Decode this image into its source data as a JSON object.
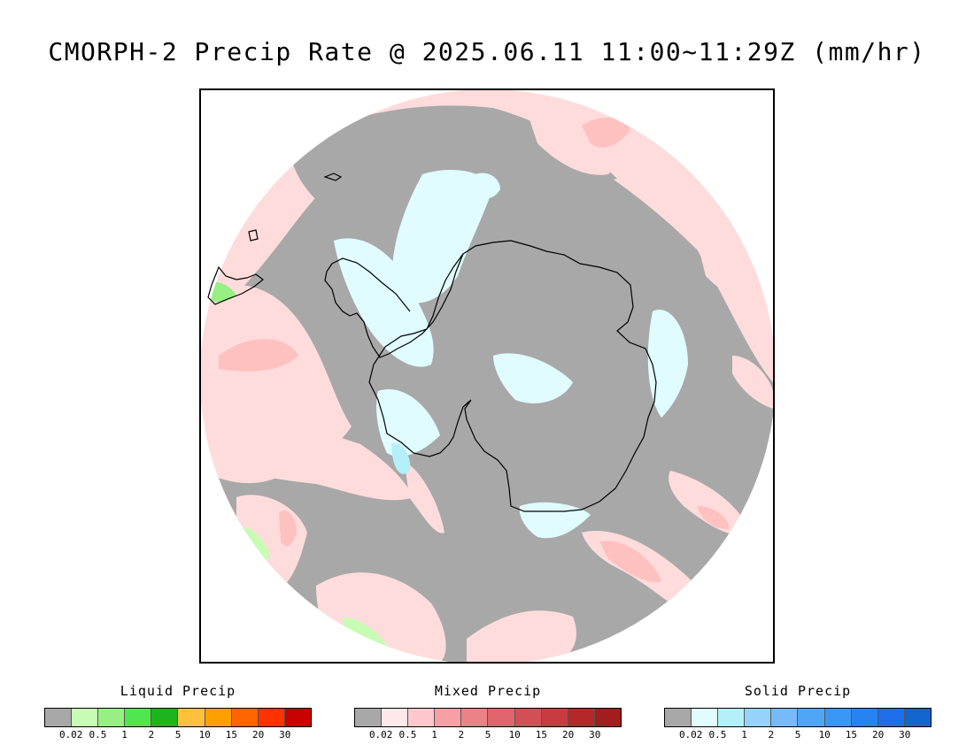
{
  "title": "CMORPH-2 Precip Rate @ 2025.06.11 11:00~11:29Z (mm/hr)",
  "map": {
    "projection": "south-polar-stereographic",
    "region": "Antarctica",
    "colors": {
      "background_gray": "#a8a8a8",
      "light_pink": "#ffdcdc",
      "pink": "#ffc0c0",
      "mid_pink": "#f0a0a0",
      "red_core": "#e07a80",
      "pale_cyan": "#e0fcff",
      "cyan": "#b4f0fa",
      "light_green": "#c8fcb4",
      "green": "#96f082",
      "coast": "#000000"
    }
  },
  "legends": [
    {
      "title": "Liquid Precip",
      "ticks": [
        "0.02",
        "0.5",
        "1",
        "2",
        "5",
        "10",
        "15",
        "20",
        "30"
      ],
      "colors": [
        "#a8a8a8",
        "#c8fcb4",
        "#96f082",
        "#50e650",
        "#1eb41e",
        "#ffc03c",
        "#ffa000",
        "#ff6400",
        "#ff3200",
        "#c80000"
      ]
    },
    {
      "title": "Mixed Precip",
      "ticks": [
        "0.02",
        "0.5",
        "1",
        "2",
        "5",
        "10",
        "15",
        "20",
        "30"
      ],
      "colors": [
        "#a8a8a8",
        "#ffe8ea",
        "#ffc8cc",
        "#f5a0a5",
        "#eb8287",
        "#e1646e",
        "#d25055",
        "#c83c41",
        "#b42828",
        "#a01e1e"
      ]
    },
    {
      "title": "Solid Precip",
      "ticks": [
        "0.02",
        "0.5",
        "1",
        "2",
        "5",
        "10",
        "15",
        "20",
        "30"
      ],
      "colors": [
        "#a8a8a8",
        "#e0fcff",
        "#b4f0fa",
        "#96d2fa",
        "#78b9fa",
        "#50a5f5",
        "#3c96f5",
        "#2882f0",
        "#1e6eeb",
        "#1464d2"
      ]
    }
  ]
}
